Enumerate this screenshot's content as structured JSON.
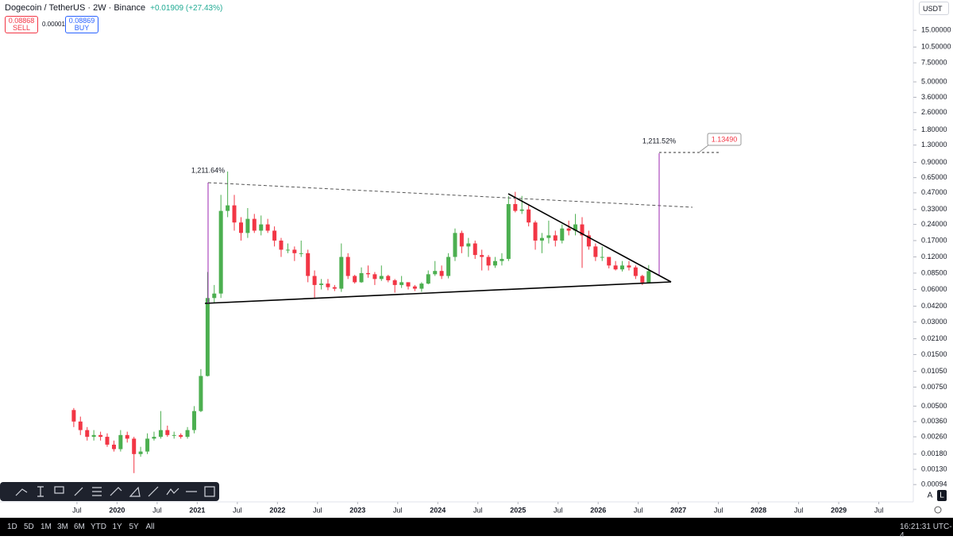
{
  "header": {
    "symbol": "Dogecoin / TetherUS · 2W · Binance",
    "change": "+0.01909 (+27.43%)",
    "sell_price": "0.08868",
    "sell_label": "SELL",
    "spread": "0.00001",
    "buy_price": "0.08869",
    "buy_label": "BUY",
    "currency": "USDT"
  },
  "timeframes": [
    "1D",
    "5D",
    "1M",
    "3M",
    "6M",
    "YTD",
    "1Y",
    "5Y",
    "All"
  ],
  "clock": "16:21:31 UTC-4",
  "scale_buttons": [
    "A",
    "L"
  ],
  "chart_data": {
    "type": "candlestick",
    "log_scale": true,
    "grid": false,
    "up_color": "#4caf50",
    "down_color": "#f23645",
    "annotations": [
      "1,211.64%",
      "1,211.52%"
    ],
    "price_label": "1.13490",
    "x": [
      2019.46,
      2019.543,
      2019.627,
      2019.71,
      2019.794,
      2019.877,
      2019.961,
      2020.044,
      2020.127,
      2020.211,
      2020.294,
      2020.378,
      2020.461,
      2020.545,
      2020.628,
      2020.711,
      2020.795,
      2020.878,
      2020.962,
      2021.045,
      2021.129,
      2021.212,
      2021.295,
      2021.379,
      2021.462,
      2021.546,
      2021.629,
      2021.712,
      2021.796,
      2021.879,
      2021.963,
      2022.046,
      2022.13,
      2022.213,
      2022.296,
      2022.38,
      2022.463,
      2022.547,
      2022.63,
      2022.713,
      2022.797,
      2022.88,
      2022.964,
      2023.047,
      2023.131,
      2023.214,
      2023.297,
      2023.381,
      2023.464,
      2023.548,
      2023.631,
      2023.714,
      2023.798,
      2023.881,
      2023.965,
      2024.048,
      2024.132,
      2024.215,
      2024.298,
      2024.382,
      2024.465,
      2024.549,
      2024.632,
      2024.715,
      2024.799,
      2024.882,
      2024.966,
      2025.049,
      2025.133,
      2025.216,
      2025.299,
      2025.383,
      2025.466,
      2025.55,
      2025.633,
      2025.716,
      2025.8,
      2025.883,
      2025.967,
      2026.05,
      2026.134,
      2026.217,
      2026.3,
      2026.384,
      2026.467,
      2026.551,
      2026.63
    ],
    "open": [
      0.0046,
      0.0036,
      0.003,
      0.0026,
      0.0027,
      0.0026,
      0.0022,
      0.002,
      0.0027,
      0.0025,
      0.0018,
      0.0019,
      0.0025,
      0.0026,
      0.003,
      0.0027,
      0.0027,
      0.0026,
      0.003,
      0.0045,
      0.0095,
      0.05,
      0.055,
      0.32,
      0.36,
      0.25,
      0.2,
      0.27,
      0.21,
      0.24,
      0.21,
      0.17,
      0.14,
      0.14,
      0.13,
      0.13,
      0.08,
      0.066,
      0.068,
      0.063,
      0.061,
      0.12,
      0.08,
      0.07,
      0.085,
      0.083,
      0.075,
      0.08,
      0.073,
      0.066,
      0.07,
      0.064,
      0.061,
      0.068,
      0.083,
      0.089,
      0.08,
      0.12,
      0.2,
      0.15,
      0.16,
      0.125,
      0.12,
      0.1,
      0.11,
      0.115,
      0.37,
      0.32,
      0.33,
      0.25,
      0.17,
      0.18,
      0.19,
      0.17,
      0.22,
      0.21,
      0.24,
      0.19,
      0.15,
      0.12,
      0.12,
      0.1,
      0.092,
      0.1,
      0.096,
      0.08,
      0.0696
    ],
    "high": [
      0.0048,
      0.004,
      0.0032,
      0.003,
      0.0029,
      0.0028,
      0.0024,
      0.003,
      0.0029,
      0.0026,
      0.0021,
      0.0028,
      0.0029,
      0.0045,
      0.0033,
      0.0029,
      0.0028,
      0.0032,
      0.005,
      0.011,
      0.087,
      0.066,
      0.45,
      0.74,
      0.45,
      0.28,
      0.34,
      0.3,
      0.29,
      0.27,
      0.23,
      0.18,
      0.16,
      0.15,
      0.17,
      0.14,
      0.09,
      0.075,
      0.075,
      0.066,
      0.16,
      0.13,
      0.082,
      0.096,
      0.1,
      0.087,
      0.1,
      0.082,
      0.075,
      0.08,
      0.07,
      0.066,
      0.07,
      0.09,
      0.11,
      0.1,
      0.13,
      0.22,
      0.21,
      0.18,
      0.17,
      0.14,
      0.125,
      0.12,
      0.13,
      0.44,
      0.48,
      0.44,
      0.36,
      0.26,
      0.2,
      0.26,
      0.21,
      0.24,
      0.26,
      0.3,
      0.28,
      0.21,
      0.16,
      0.15,
      0.12,
      0.11,
      0.11,
      0.11,
      0.1,
      0.082,
      0.101
    ],
    "low": [
      0.0032,
      0.0027,
      0.0024,
      0.0024,
      0.0024,
      0.0021,
      0.0019,
      0.0019,
      0.0023,
      0.0012,
      0.0017,
      0.0018,
      0.0024,
      0.0025,
      0.0026,
      0.0025,
      0.0025,
      0.0025,
      0.0028,
      0.0044,
      0.0094,
      0.045,
      0.05,
      0.28,
      0.21,
      0.17,
      0.18,
      0.2,
      0.19,
      0.2,
      0.15,
      0.12,
      0.13,
      0.11,
      0.12,
      0.07,
      0.05,
      0.06,
      0.059,
      0.058,
      0.057,
      0.075,
      0.068,
      0.069,
      0.077,
      0.066,
      0.072,
      0.07,
      0.056,
      0.062,
      0.06,
      0.058,
      0.057,
      0.067,
      0.08,
      0.075,
      0.076,
      0.11,
      0.13,
      0.12,
      0.115,
      0.09,
      0.09,
      0.095,
      0.1,
      0.11,
      0.31,
      0.3,
      0.23,
      0.14,
      0.13,
      0.16,
      0.15,
      0.16,
      0.19,
      0.19,
      0.095,
      0.14,
      0.11,
      0.11,
      0.094,
      0.09,
      0.088,
      0.09,
      0.075,
      0.066,
      0.069
    ],
    "close": [
      0.0036,
      0.003,
      0.0026,
      0.0027,
      0.0026,
      0.0022,
      0.002,
      0.0027,
      0.0025,
      0.0018,
      0.0019,
      0.0025,
      0.0026,
      0.003,
      0.0027,
      0.0027,
      0.0026,
      0.003,
      0.0045,
      0.0095,
      0.05,
      0.055,
      0.32,
      0.36,
      0.25,
      0.2,
      0.27,
      0.21,
      0.24,
      0.21,
      0.17,
      0.14,
      0.14,
      0.13,
      0.13,
      0.08,
      0.066,
      0.068,
      0.063,
      0.061,
      0.12,
      0.08,
      0.07,
      0.085,
      0.083,
      0.075,
      0.08,
      0.073,
      0.066,
      0.07,
      0.064,
      0.061,
      0.068,
      0.083,
      0.089,
      0.08,
      0.12,
      0.2,
      0.15,
      0.16,
      0.125,
      0.12,
      0.1,
      0.11,
      0.115,
      0.37,
      0.32,
      0.33,
      0.25,
      0.17,
      0.18,
      0.19,
      0.17,
      0.22,
      0.21,
      0.24,
      0.19,
      0.15,
      0.12,
      0.12,
      0.1,
      0.092,
      0.1,
      0.096,
      0.08,
      0.0696,
      0.0887
    ],
    "xlim": [
      2018.54,
      2029.93
    ],
    "xticks": [
      {
        "value": 2019.5,
        "label": "Jul"
      },
      2020,
      {
        "value": 2020.5,
        "label": "Jul"
      },
      2021,
      {
        "value": 2021.5,
        "label": "Jul"
      },
      2022,
      {
        "value": 2022.5,
        "label": "Jul"
      },
      2023,
      {
        "value": 2023.5,
        "label": "Jul"
      },
      2024,
      {
        "value": 2024.5,
        "label": "Jul"
      },
      2025,
      {
        "value": 2025.5,
        "label": "Jul"
      },
      2026,
      {
        "value": 2026.5,
        "label": "Jul"
      },
      2027,
      {
        "value": 2027.5,
        "label": "Jul"
      },
      2028,
      {
        "value": 2028.5,
        "label": "Jul"
      },
      2029,
      {
        "value": 2029.5,
        "label": "Jul"
      }
    ],
    "ylim": [
      0.00065,
      28.6
    ],
    "yticks": [
      {
        "value": 15,
        "label": "15.00000"
      },
      {
        "value": 10.5,
        "label": "10.50000"
      },
      {
        "value": 7.5,
        "label": "7.50000"
      },
      {
        "value": 5,
        "label": "5.00000"
      },
      {
        "value": 3.6,
        "label": "3.60000"
      },
      {
        "value": 2.6,
        "label": "2.60000"
      },
      {
        "value": 1.8,
        "label": "1.80000"
      },
      {
        "value": 1.3,
        "label": "1.30000"
      },
      {
        "value": 0.9,
        "label": "0.90000"
      },
      {
        "value": 0.65,
        "label": "0.65000"
      },
      {
        "value": 0.47,
        "label": "0.47000"
      },
      {
        "value": 0.33,
        "label": "0.33000"
      },
      {
        "value": 0.24,
        "label": "0.24000"
      },
      {
        "value": 0.17,
        "label": "0.17000"
      },
      {
        "value": 0.12,
        "label": "0.12000"
      },
      {
        "value": 0.085,
        "label": "0.08500"
      },
      {
        "value": 0.06,
        "label": "0.06000"
      },
      {
        "value": 0.042,
        "label": "0.04200"
      },
      {
        "value": 0.03,
        "label": "0.03000"
      },
      {
        "value": 0.021,
        "label": "0.02100"
      },
      {
        "value": 0.015,
        "label": "0.01500"
      },
      {
        "value": 0.0105,
        "label": "0.01050"
      },
      {
        "value": 0.0075,
        "label": "0.00750"
      },
      {
        "value": 0.005,
        "label": "0.00500"
      },
      {
        "value": 0.0036,
        "label": "0.00360"
      },
      {
        "value": 0.0026,
        "label": "0.00260"
      },
      {
        "value": 0.0018,
        "label": "0.00180"
      },
      {
        "value": 0.0013,
        "label": "0.00130"
      },
      {
        "value": 0.00094,
        "label": "0.00094"
      }
    ]
  }
}
